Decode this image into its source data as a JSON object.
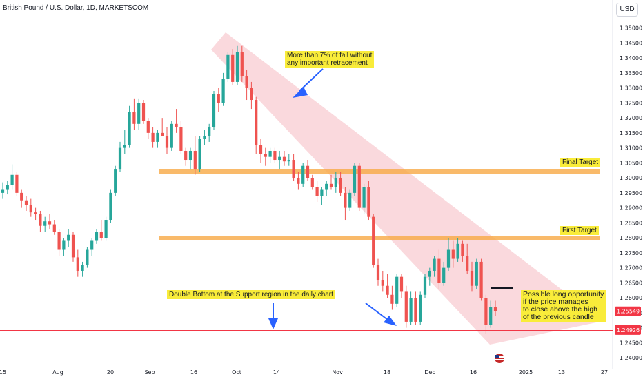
{
  "chart_data": {
    "type": "candlestick",
    "title": "British Pound / U.S. Dollar, 1D, MARKETSCOM",
    "currency": "USD",
    "ylim": [
      1.2375,
      1.3575
    ],
    "y_ticks": [
      "1.35000",
      "1.34500",
      "1.34000",
      "1.33500",
      "1.33000",
      "1.32500",
      "1.32000",
      "1.31500",
      "1.31000",
      "1.30500",
      "1.30000",
      "1.29500",
      "1.29000",
      "1.28500",
      "1.28000",
      "1.27500",
      "1.27000",
      "1.26500",
      "1.26000",
      "1.25500",
      "1.25000",
      "1.24500",
      "1.24000"
    ],
    "x_ticks": [
      "15",
      "Aug",
      "20",
      "Sep",
      "16",
      "Oct",
      "14",
      "Nov",
      "18",
      "Dec",
      "16",
      "2025",
      "13",
      "27"
    ],
    "price_labels": {
      "current": {
        "value": "1.25549",
        "color": "#f23645"
      },
      "support": {
        "value": "1.24926",
        "color": "#f23645"
      }
    },
    "levels": [
      {
        "name": "Final Target",
        "value": 1.3005,
        "color": "#f7a945"
      },
      {
        "name": "First Target",
        "value": 1.2785,
        "color": "#f7a945"
      },
      {
        "name": "Support",
        "value": 1.2493,
        "color": "#f23645"
      }
    ],
    "candles": [
      [
        1.295,
        1.2985,
        1.293,
        1.296
      ],
      [
        1.296,
        1.299,
        1.2945,
        1.2975
      ],
      [
        1.2975,
        1.3045,
        1.296,
        1.301
      ],
      [
        1.301,
        1.302,
        1.294,
        1.295
      ],
      [
        1.295,
        1.296,
        1.29,
        1.2925
      ],
      [
        1.2925,
        1.294,
        1.289,
        1.291
      ],
      [
        1.291,
        1.293,
        1.287,
        1.2885
      ],
      [
        1.2885,
        1.29,
        1.286,
        1.288
      ],
      [
        1.288,
        1.289,
        1.282,
        1.284
      ],
      [
        1.284,
        1.287,
        1.282,
        1.2855
      ],
      [
        1.2855,
        1.288,
        1.283,
        1.2845
      ],
      [
        1.2845,
        1.286,
        1.281,
        1.282
      ],
      [
        1.282,
        1.283,
        1.274,
        1.276
      ],
      [
        1.276,
        1.28,
        1.274,
        1.279
      ],
      [
        1.279,
        1.283,
        1.277,
        1.281
      ],
      [
        1.281,
        1.282,
        1.272,
        1.2735
      ],
      [
        1.2735,
        1.276,
        1.267,
        1.269
      ],
      [
        1.269,
        1.272,
        1.267,
        1.271
      ],
      [
        1.271,
        1.277,
        1.27,
        1.276
      ],
      [
        1.276,
        1.28,
        1.274,
        1.279
      ],
      [
        1.279,
        1.283,
        1.278,
        1.282
      ],
      [
        1.282,
        1.286,
        1.279,
        1.28
      ],
      [
        1.28,
        1.287,
        1.279,
        1.286
      ],
      [
        1.286,
        1.296,
        1.285,
        1.295
      ],
      [
        1.295,
        1.304,
        1.294,
        1.303
      ],
      [
        1.303,
        1.312,
        1.302,
        1.31
      ],
      [
        1.31,
        1.316,
        1.308,
        1.311
      ],
      [
        1.311,
        1.324,
        1.31,
        1.322
      ],
      [
        1.322,
        1.3265,
        1.316,
        1.318
      ],
      [
        1.318,
        1.3265,
        1.316,
        1.325
      ],
      [
        1.325,
        1.326,
        1.318,
        1.319
      ],
      [
        1.319,
        1.32,
        1.313,
        1.315
      ],
      [
        1.315,
        1.317,
        1.31,
        1.312
      ],
      [
        1.312,
        1.316,
        1.31,
        1.315
      ],
      [
        1.315,
        1.32,
        1.314,
        1.314
      ],
      [
        1.314,
        1.317,
        1.308,
        1.31
      ],
      [
        1.31,
        1.319,
        1.309,
        1.318
      ],
      [
        1.318,
        1.323,
        1.315,
        1.317
      ],
      [
        1.317,
        1.319,
        1.308,
        1.309
      ],
      [
        1.309,
        1.31,
        1.304,
        1.306
      ],
      [
        1.306,
        1.31,
        1.303,
        1.309
      ],
      [
        1.309,
        1.314,
        1.301,
        1.303
      ],
      [
        1.303,
        1.314,
        1.302,
        1.313
      ],
      [
        1.313,
        1.316,
        1.311,
        1.314
      ],
      [
        1.314,
        1.318,
        1.312,
        1.317
      ],
      [
        1.317,
        1.329,
        1.316,
        1.328
      ],
      [
        1.328,
        1.33,
        1.322,
        1.325
      ],
      [
        1.325,
        1.335,
        1.324,
        1.333
      ],
      [
        1.333,
        1.342,
        1.332,
        1.341
      ],
      [
        1.341,
        1.343,
        1.331,
        1.332
      ],
      [
        1.332,
        1.344,
        1.331,
        1.342
      ],
      [
        1.342,
        1.344,
        1.332,
        1.334
      ],
      [
        1.334,
        1.336,
        1.326,
        1.33
      ],
      [
        1.33,
        1.332,
        1.323,
        1.326
      ],
      [
        1.326,
        1.327,
        1.308,
        1.311
      ],
      [
        1.311,
        1.313,
        1.305,
        1.308
      ],
      [
        1.308,
        1.31,
        1.304,
        1.307
      ],
      [
        1.307,
        1.31,
        1.305,
        1.309
      ],
      [
        1.309,
        1.31,
        1.305,
        1.306
      ],
      [
        1.306,
        1.309,
        1.303,
        1.307
      ],
      [
        1.307,
        1.309,
        1.304,
        1.3055
      ],
      [
        1.3055,
        1.308,
        1.304,
        1.306
      ],
      [
        1.306,
        1.308,
        1.299,
        1.3
      ],
      [
        1.3,
        1.302,
        1.296,
        1.298
      ],
      [
        1.298,
        1.305,
        1.297,
        1.304
      ],
      [
        1.304,
        1.306,
        1.299,
        1.3
      ],
      [
        1.3,
        1.301,
        1.296,
        1.297
      ],
      [
        1.297,
        1.299,
        1.292,
        1.294
      ],
      [
        1.294,
        1.297,
        1.291,
        1.296
      ],
      [
        1.296,
        1.299,
        1.294,
        1.298
      ],
      [
        1.298,
        1.301,
        1.296,
        1.297
      ],
      [
        1.297,
        1.302,
        1.295,
        1.3
      ],
      [
        1.3,
        1.302,
        1.294,
        1.295
      ],
      [
        1.295,
        1.297,
        1.286,
        1.29
      ],
      [
        1.29,
        1.296,
        1.289,
        1.295
      ],
      [
        1.295,
        1.305,
        1.294,
        1.304
      ],
      [
        1.304,
        1.305,
        1.289,
        1.29
      ],
      [
        1.29,
        1.298,
        1.288,
        1.297
      ],
      [
        1.297,
        1.299,
        1.286,
        1.287
      ],
      [
        1.287,
        1.288,
        1.27,
        1.271
      ],
      [
        1.271,
        1.273,
        1.264,
        1.266
      ],
      [
        1.266,
        1.269,
        1.262,
        1.264
      ],
      [
        1.264,
        1.268,
        1.26,
        1.261
      ],
      [
        1.261,
        1.264,
        1.256,
        1.258
      ],
      [
        1.258,
        1.268,
        1.257,
        1.267
      ],
      [
        1.267,
        1.268,
        1.26,
        1.262
      ],
      [
        1.262,
        1.264,
        1.25,
        1.252
      ],
      [
        1.252,
        1.262,
        1.251,
        1.26
      ],
      [
        1.26,
        1.262,
        1.251,
        1.252
      ],
      [
        1.252,
        1.262,
        1.251,
        1.261
      ],
      [
        1.261,
        1.268,
        1.26,
        1.267
      ],
      [
        1.267,
        1.27,
        1.264,
        1.269
      ],
      [
        1.269,
        1.274,
        1.267,
        1.273
      ],
      [
        1.273,
        1.276,
        1.263,
        1.265
      ],
      [
        1.265,
        1.272,
        1.264,
        1.27
      ],
      [
        1.27,
        1.28,
        1.269,
        1.276
      ],
      [
        1.276,
        1.279,
        1.27,
        1.273
      ],
      [
        1.273,
        1.28,
        1.272,
        1.278
      ],
      [
        1.278,
        1.279,
        1.272,
        1.274
      ],
      [
        1.274,
        1.278,
        1.268,
        1.269
      ],
      [
        1.269,
        1.272,
        1.262,
        1.264
      ],
      [
        1.264,
        1.273,
        1.263,
        1.272
      ],
      [
        1.272,
        1.273,
        1.259,
        1.26
      ],
      [
        1.26,
        1.261,
        1.248,
        1.251
      ],
      [
        1.251,
        1.259,
        1.25,
        1.257
      ],
      [
        1.257,
        1.259,
        1.254,
        1.2555
      ]
    ]
  },
  "annotations": {
    "fall_note": "More than 7% of fall without\nany important retracement",
    "final_target": "Final Target",
    "first_target": "First Target",
    "double_bottom": "Double Bottom at the Support region in the daily chart",
    "long_note": "Possible long opportunity\nif the price manages\nto close above the high\nof the previous candle"
  },
  "colors": {
    "up": "#26a69a",
    "down": "#ef5350",
    "channel": "#f8c9cf",
    "arrow": "#2962ff",
    "highlight": "#f9ec3a"
  }
}
